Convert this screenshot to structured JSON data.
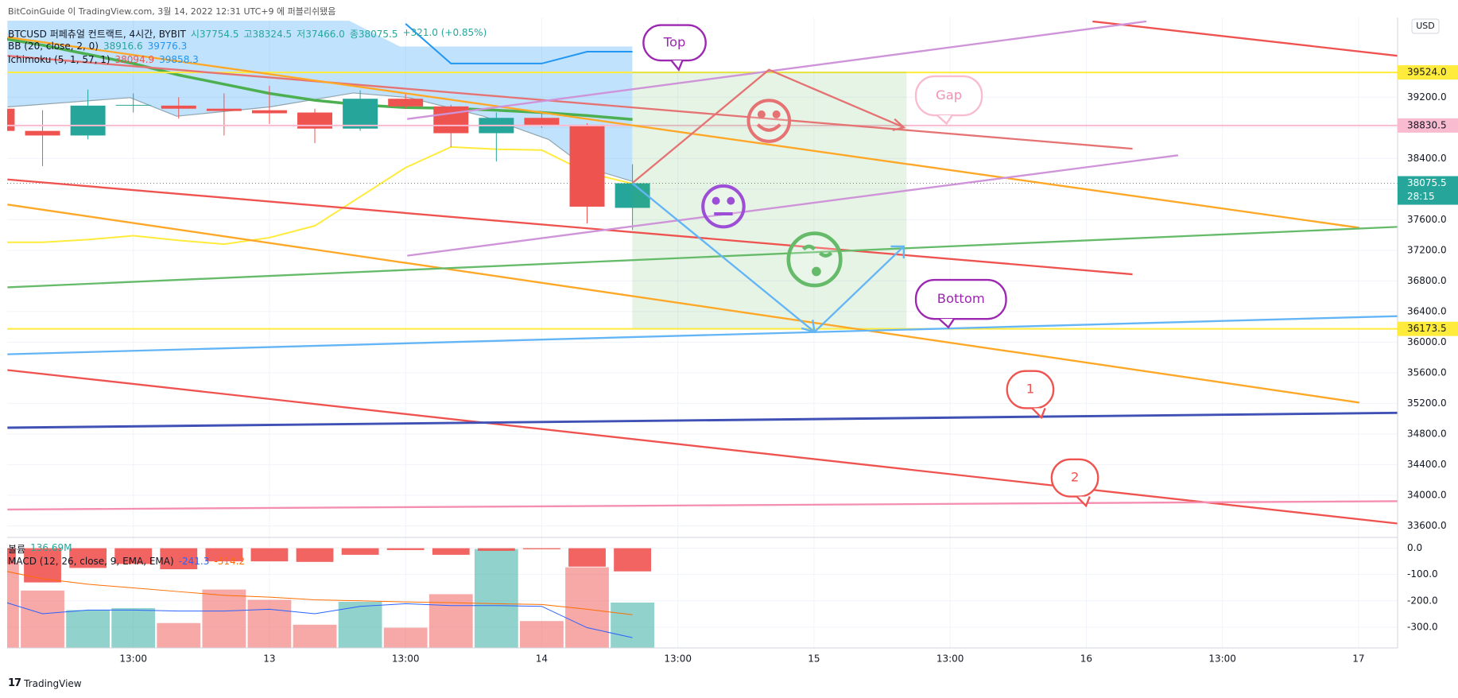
{
  "chart_data": {
    "type": "candlestick",
    "source": "BitCoinGuide 이 TradingView.com, 3월 14, 2022 12:31 UTC+9 에 퍼블리쉬됐음",
    "title": "BTCUSD 퍼페츄얼 컨트랙트, 4시간, BYBIT",
    "ohlc_text": [
      "시37754.5",
      "고38324.5",
      "저37466.0",
      "종38075.5"
    ],
    "change_text": "+321.0 (+0.85%)",
    "indicators": [
      {
        "name": "BB (20, close, 2, 0)",
        "values_text": [
          "38916.6",
          "39776.3"
        ]
      },
      {
        "name": "Ichimoku (5, 1, 57, 1)",
        "values_text": [
          "38094.9",
          "39858.3"
        ]
      }
    ],
    "currency": "USD",
    "countdown": "28:15",
    "brand": "TradingView",
    "up_color": "#26a69a",
    "down_color": "#ef5350",
    "candles": {
      "open": [
        39050,
        38760,
        38700,
        39090,
        39090,
        39050,
        39030,
        39000,
        38790,
        39180,
        39080,
        38730,
        38930,
        38840,
        37754.5
      ],
      "high": [
        39100,
        39030,
        39300,
        39250,
        39200,
        39250,
        39350,
        39050,
        39290,
        39250,
        39100,
        39000,
        38990,
        38860,
        38324.5
      ],
      "low": [
        38700,
        38300,
        38650,
        39000,
        38920,
        38700,
        38850,
        38600,
        38760,
        39050,
        38550,
        38360,
        38800,
        37550,
        37466
      ],
      "close": [
        38760,
        38700,
        39090,
        39100,
        39050,
        39020,
        38990,
        38790,
        39180,
        39080,
        38730,
        38930,
        38840,
        37770,
        38075.5
      ]
    },
    "xlim": [
      0.22,
      30.86
    ],
    "xticks": [
      {
        "value": 3,
        "label": "13:00"
      },
      {
        "value": 6,
        "label": "13"
      },
      {
        "value": 9,
        "label": "13:00"
      },
      {
        "value": 12,
        "label": "14"
      },
      {
        "value": 15,
        "label": "13:00"
      },
      {
        "value": 18,
        "label": "15"
      },
      {
        "value": 21,
        "label": "13:00"
      },
      {
        "value": 24,
        "label": "16"
      },
      {
        "value": 27,
        "label": "13:00"
      },
      {
        "value": 30,
        "label": "17"
      }
    ],
    "ylim": [
      33480,
      40200
    ],
    "yticks": [
      {
        "value": 33600,
        "label": "33600.0"
      },
      {
        "value": 34000,
        "label": "34000.0"
      },
      {
        "value": 34400,
        "label": "34400.0"
      },
      {
        "value": 34800,
        "label": "34800.0"
      },
      {
        "value": 35200,
        "label": "35200.0"
      },
      {
        "value": 35600,
        "label": "35600.0"
      },
      {
        "value": 36000,
        "label": "36000.0"
      },
      {
        "value": 36400,
        "label": "36400.0"
      },
      {
        "value": 36800,
        "label": "36800.0"
      },
      {
        "value": 37200,
        "label": "37200.0"
      },
      {
        "value": 37600,
        "label": "37600.0"
      },
      {
        "value": 38000,
        "label": "38000.0"
      },
      {
        "value": 38400,
        "label": "38400.0"
      },
      {
        "value": 38800,
        "label": "38800.0"
      },
      {
        "value": 39200,
        "label": "39200.0"
      }
    ],
    "grid": true,
    "levels": [
      {
        "value": 39524,
        "label": "39524.0",
        "color": "#ffeb3b"
      },
      {
        "value": 38830.5,
        "label": "38830.5",
        "color": "#f8bbd0"
      },
      {
        "value": 38075.5,
        "label": "38075.5",
        "color": "#26a69a"
      },
      {
        "value": 36173.5,
        "label": "36173.5",
        "color": "#ffeb3b"
      }
    ],
    "overlays": [
      {
        "color": "#4caf50",
        "values": [
          39980,
          39880,
          39760,
          39640,
          39490,
          39370,
          39250,
          39160,
          39100,
          39065,
          39055,
          39030,
          39000,
          38960,
          38910
        ]
      },
      {
        "color": "#ffeb3b",
        "values": [
          37305,
          37305,
          37340,
          37390,
          37330,
          37280,
          37365,
          37520,
          37900,
          38280,
          38550,
          38520,
          38510,
          38215,
          38070
        ]
      },
      {
        "color": "#2196f3",
        "values": [
          null,
          null,
          null,
          null,
          null,
          null,
          null,
          null,
          null,
          40160,
          39640,
          39640,
          39640,
          39795,
          39795
        ]
      }
    ],
    "annotations": [
      "Top",
      "Gap",
      "Bottom",
      "1",
      "2"
    ],
    "volume": {
      "name": "볼륨",
      "last_label": "136.69M",
      "ylim": [
        0,
        326
      ],
      "values": [
        256,
        173,
        114,
        120,
        75,
        176,
        145,
        70,
        139,
        61,
        162,
        298,
        81,
        243,
        136.69
      ]
    },
    "macd": {
      "name": "MACD (12, 26, close, 9, EMA, EMA)",
      "values_text": [
        "-241.3",
        "-314.2"
      ],
      "ylim": [
        -379,
        32
      ],
      "yticks": [
        {
          "value": 0,
          "label": "0.0"
        },
        {
          "value": -100,
          "label": "-100.0"
        },
        {
          "value": -200,
          "label": "-200.0"
        },
        {
          "value": -300,
          "label": "-300.0"
        }
      ],
      "histogram": [
        -60,
        -130,
        -75,
        -60,
        -80,
        -50,
        -50,
        -52,
        -25,
        -7,
        -25,
        -10,
        -4,
        -70,
        -88
      ],
      "histogram_color": "#ef5350",
      "macd": [
        -196,
        -249,
        -235,
        -235,
        -239,
        -239,
        -232,
        -249,
        -221,
        -211,
        -218,
        -218,
        -221,
        -302,
        -340
      ],
      "macd_color": "#2962ff",
      "signal": [
        -81,
        -116,
        -137,
        -151,
        -165,
        -179,
        -186,
        -196,
        -200,
        -204,
        -207,
        -211,
        -214,
        -232,
        -253
      ],
      "signal_color": "#ff6d00"
    }
  }
}
